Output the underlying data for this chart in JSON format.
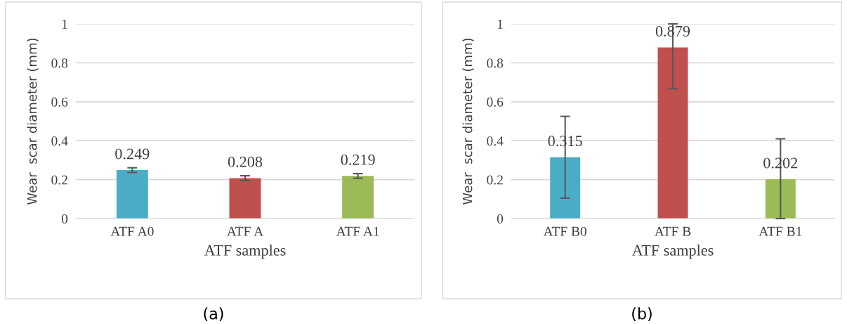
{
  "chart_data": [
    {
      "type": "bar",
      "xlabel": "ATF samples",
      "ylabel": "Wear  scar diameter (mm)",
      "categories": [
        "ATF A0",
        "ATF A",
        "ATF A1"
      ],
      "values": [
        0.249,
        0.208,
        0.219
      ],
      "colors": [
        "#4bacc6",
        "#c0504d",
        "#9bbb59"
      ],
      "errors": [
        0.012,
        0.012,
        0.012
      ],
      "data_labels": true,
      "ylim": [
        0,
        1
      ],
      "yticks": [
        0,
        0.2,
        0.4,
        0.6,
        0.8,
        1
      ],
      "grid": "y",
      "annotations": [
        "(a)"
      ]
    },
    {
      "type": "bar",
      "xlabel": "ATF samples",
      "ylabel": "Wear  scar diameter (mm)",
      "categories": [
        "ATF B0",
        "ATF B",
        "ATF B1"
      ],
      "values": [
        0.315,
        0.879,
        0.202
      ],
      "colors": [
        "#4bacc6",
        "#c0504d",
        "#9bbb59"
      ],
      "errors": [
        [
          0.105,
          0.525
        ],
        [
          0.667,
          1.0
        ],
        [
          0,
          0.41
        ]
      ],
      "data_labels": true,
      "ylim": [
        0,
        1
      ],
      "yticks": [
        0,
        0.2,
        0.4,
        0.6,
        0.8,
        1
      ],
      "grid": "y",
      "annotations": [
        "(b)"
      ]
    }
  ]
}
